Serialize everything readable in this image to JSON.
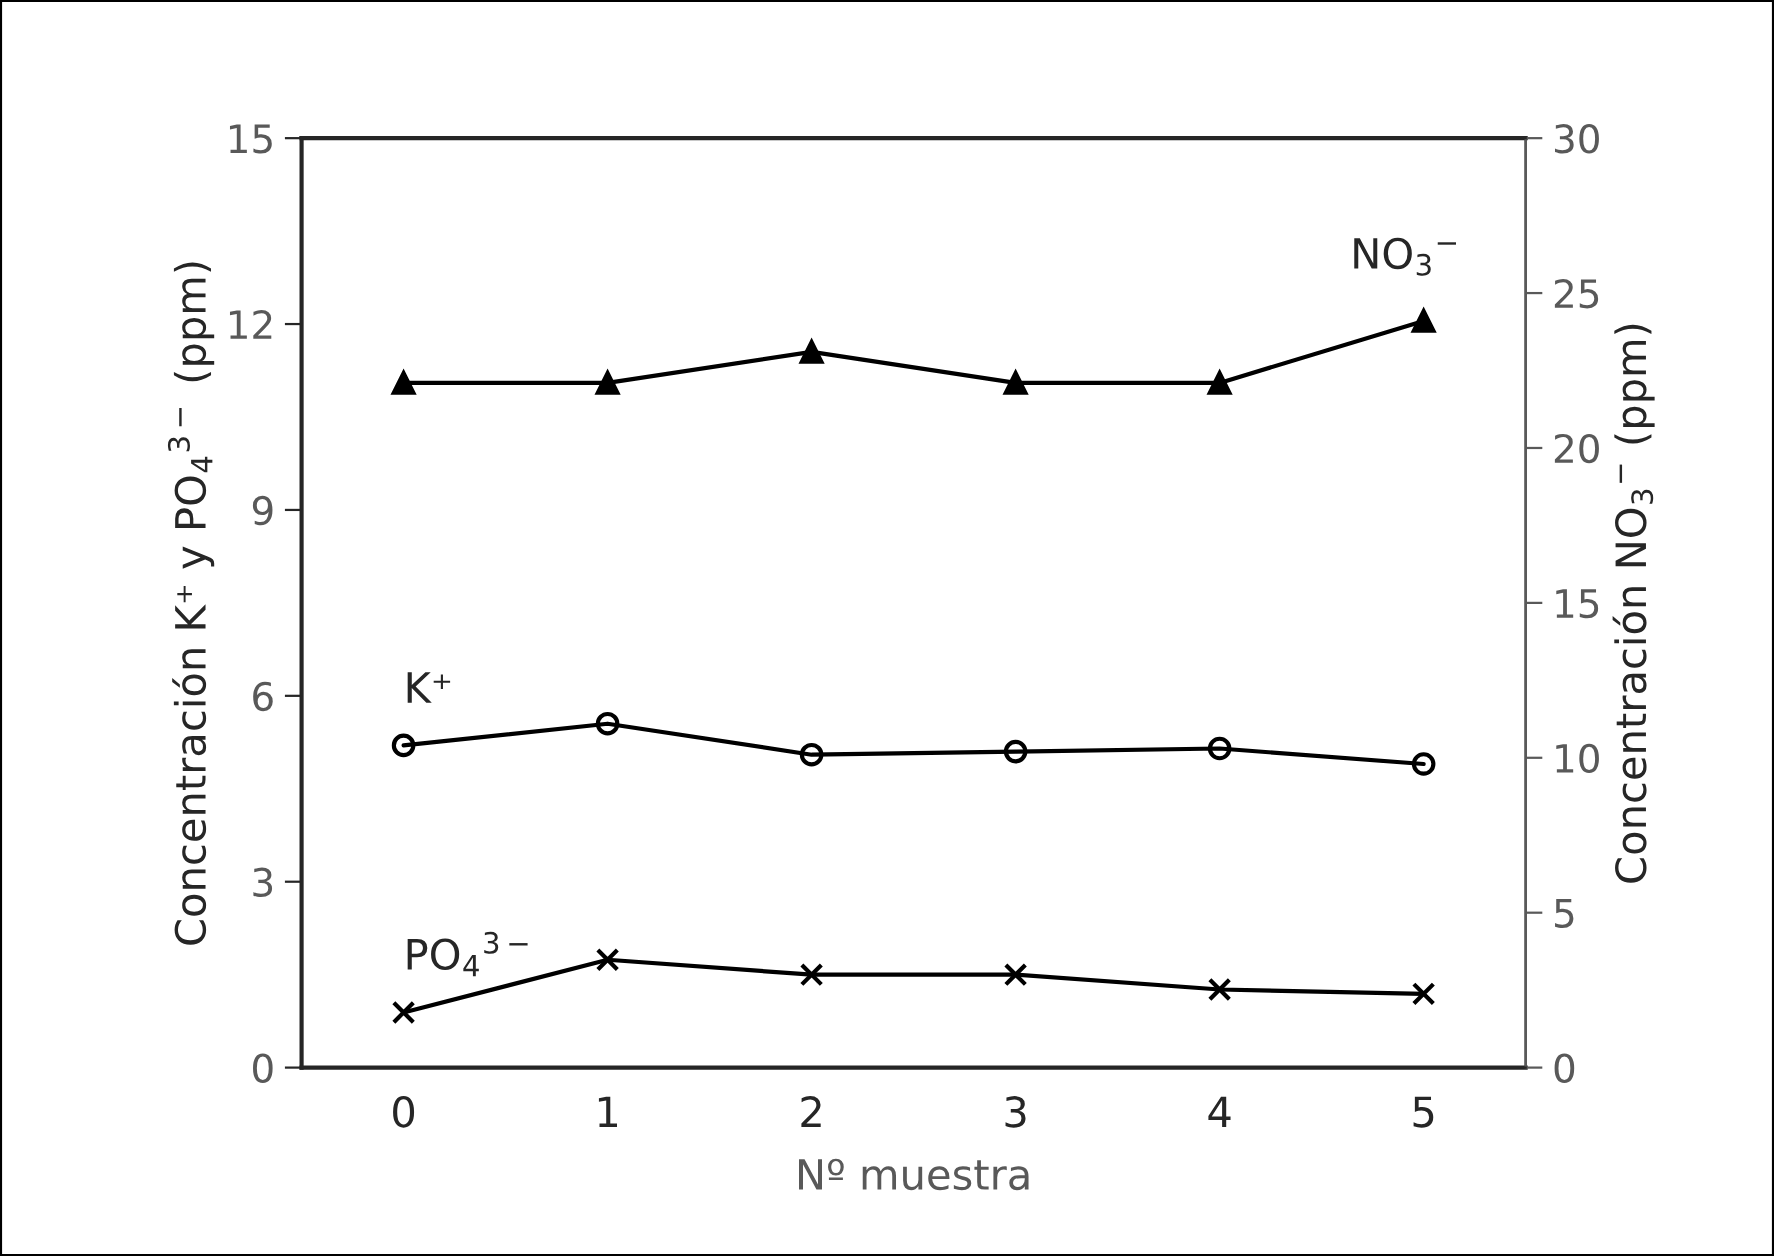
{
  "chart_data": {
    "type": "line",
    "xlabel": "Nº muestra",
    "ylabel": "Concentración K⁺ y PO$_{4}$$^{3−}$ (ppm)",
    "y2label": "Concentración NO$_{3}$$^{−}$ (ppm)",
    "categories": [
      "0",
      "1",
      "2",
      "3",
      "4",
      "5"
    ],
    "series": [
      {
        "name": "NO$_{3}$$^{−}$",
        "color": "#000000",
        "marker": "triangle",
        "axis": "y2",
        "values": [
          22.1,
          22.1,
          23.1,
          22.1,
          22.1,
          24.1
        ]
      },
      {
        "name": "K⁺",
        "color": "#000000",
        "marker": "circle",
        "values": [
          5.2,
          5.55,
          5.05,
          5.1,
          5.15,
          4.9
        ]
      },
      {
        "name": "PO$_{4}$$^{3−}$",
        "color": "#000000",
        "marker": "cross",
        "values": [
          0.89,
          1.74,
          1.5,
          1.5,
          1.26,
          1.19
        ]
      }
    ],
    "ylim": [
      0,
      15
    ],
    "yticks": [
      0,
      3,
      6,
      9,
      12,
      15
    ],
    "y2lim": [
      0,
      30
    ],
    "y2ticks": [
      0,
      5,
      10,
      15,
      20,
      25,
      30
    ],
    "grid": false,
    "legend": false,
    "line_style": "solid"
  }
}
